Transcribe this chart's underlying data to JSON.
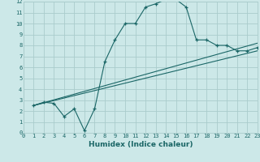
{
  "bg_color": "#cce8e8",
  "grid_color": "#aacccc",
  "line_color": "#1a6666",
  "curve1_x": [
    1,
    2,
    3,
    4,
    5,
    6,
    7,
    8,
    9,
    10,
    11,
    12,
    13,
    14,
    15,
    16,
    17,
    18,
    19,
    20,
    21,
    22,
    23
  ],
  "curve1_y": [
    2.5,
    2.8,
    2.7,
    1.5,
    2.2,
    0.2,
    2.2,
    6.5,
    8.5,
    10.0,
    10.0,
    11.5,
    11.8,
    12.2,
    12.2,
    11.5,
    8.5,
    8.5,
    8.0,
    8.0,
    7.5,
    7.5,
    7.8
  ],
  "line2_x": [
    1,
    23
  ],
  "line2_y": [
    2.5,
    7.5
  ],
  "line3_x": [
    1,
    23
  ],
  "line3_y": [
    2.5,
    8.2
  ],
  "xlabel": "Humidex (Indice chaleur)",
  "xlim": [
    0,
    23
  ],
  "ylim": [
    0,
    12
  ],
  "xticks": [
    0,
    1,
    2,
    3,
    4,
    5,
    6,
    7,
    8,
    9,
    10,
    11,
    12,
    13,
    14,
    15,
    16,
    17,
    18,
    19,
    20,
    21,
    22,
    23
  ],
  "yticks": [
    0,
    1,
    2,
    3,
    4,
    5,
    6,
    7,
    8,
    9,
    10,
    11,
    12
  ],
  "axis_fontsize": 5.5,
  "xlabel_fontsize": 6.5,
  "tick_fontsize": 5.0
}
